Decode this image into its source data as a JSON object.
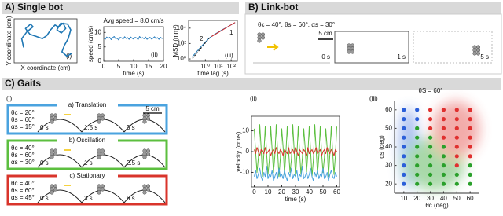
{
  "panels": {
    "A": "A) Single bot",
    "B": "B) Link-bot",
    "C": "C) Gaits"
  },
  "link_bot": {
    "params": "θc = 40°, θs = 60°, αs = 30°",
    "scale": "5 cm",
    "times": [
      "0 s",
      "1 s",
      "5 s"
    ]
  },
  "gaits": {
    "label": "(i)",
    "scale": "5 cm",
    "rows": [
      {
        "title": "a) Translation",
        "color": "#4aa3df",
        "params": [
          "θc = 20°",
          "θs = 60°",
          "αs = 15°"
        ],
        "times": [
          "0 s",
          "1.5 s",
          "3 s"
        ]
      },
      {
        "title": "b) Oscillation",
        "color": "#5cbf3f",
        "params": [
          "θc = 40°",
          "θs = 60°",
          "αs = 30°"
        ],
        "times": [
          "0 s",
          "1 s",
          "2.5 s"
        ]
      },
      {
        "title": "c) Stationary",
        "color": "#d9342b",
        "params": [
          "θc = 40°",
          "θs = 60°",
          "αs = 45°"
        ],
        "times": [
          "0 s",
          "3 s",
          "6 s"
        ]
      }
    ]
  },
  "chart_data": [
    {
      "type": "line",
      "panel_label": "(i)",
      "xlabel": "X coordinate (cm)",
      "ylabel": "Y coordinate (cm)",
      "xlim": [
        0,
        10
      ],
      "ylim": [
        0,
        10
      ],
      "x": [
        1.5,
        1.2,
        2,
        3,
        2.6,
        1.8,
        2.5,
        3.5,
        4.5,
        5.2,
        5.8,
        6.5,
        7,
        7.8,
        8.2,
        7.5,
        6.8,
        7.4,
        8.5,
        9,
        8.6,
        8,
        7.6,
        8.4,
        9.2
      ],
      "series": [
        {
          "color": "#1f77b4",
          "values": [
            3.5,
            5.5,
            7,
            8.2,
            8.8,
            7.8,
            6.5,
            6,
            5.5,
            6.2,
            7.5,
            8.6,
            8.2,
            9,
            7.8,
            6.8,
            7.5,
            9,
            8.8,
            7.5,
            5.5,
            4,
            2.5,
            1.5,
            2.2
          ]
        }
      ]
    },
    {
      "type": "line",
      "title": "Avg speed = 8.0 cm/s",
      "panel_label": "(ii)",
      "xlabel": "time (s)",
      "ylabel": "speed (cm/s)",
      "xlim": [
        0,
        20
      ],
      "ylim": [
        0,
        12
      ],
      "xticks": [
        0,
        5,
        10,
        15,
        20
      ],
      "yticks": [
        0,
        5,
        10
      ],
      "x": [
        0,
        0.5,
        1,
        1.5,
        2,
        2.5,
        3,
        3.5,
        4,
        4.5,
        5,
        5.5,
        6,
        6.5,
        7,
        7.5,
        8,
        8.5,
        9,
        9.5,
        10,
        10.5,
        11,
        11.5,
        12,
        12.5,
        13,
        13.5,
        14,
        14.5,
        15,
        15.5,
        16,
        16.5,
        17,
        17.5,
        18,
        18.5,
        19,
        19.5,
        20
      ],
      "series": [
        {
          "color": "#2a7fc0",
          "values": [
            8.1,
            7.6,
            8.4,
            7.9,
            8.3,
            7.5,
            8.2,
            8.6,
            7.8,
            8.0,
            7.4,
            8.3,
            8.1,
            7.7,
            8.5,
            7.9,
            8.2,
            7.6,
            8.4,
            8.0,
            7.7,
            8.3,
            8.1,
            7.5,
            8.6,
            7.9,
            8.2,
            7.8,
            8.4,
            7.6,
            8.1,
            8.3,
            7.7,
            8.0,
            8.5,
            7.8,
            8.2,
            7.6,
            8.3,
            7.9,
            8.1
          ]
        }
      ]
    },
    {
      "type": "line",
      "panel_label": "(iii)",
      "xlabel": "time lag (s)",
      "ylabel": "MSD (mm²)",
      "xscale": "log",
      "yscale": "log",
      "xlim": [
        0.05,
        300
      ],
      "ylim": [
        0.5,
        100000
      ],
      "xticks": [
        {
          "value": 1,
          "label": "10⁰"
        },
        {
          "value": 10,
          "label": "10¹"
        },
        {
          "value": 100,
          "label": "10²"
        }
      ],
      "yticks": [
        {
          "value": 1,
          "label": "10⁰"
        },
        {
          "value": 100,
          "label": "10²"
        },
        {
          "value": 10000,
          "label": "10⁴"
        }
      ],
      "annotations": [
        "2",
        "1"
      ],
      "series": [
        {
          "color": "#1f77b4",
          "x": [
            0.1,
            0.2,
            0.5,
            1,
            2,
            5,
            10,
            20,
            50,
            100,
            200
          ],
          "values": [
            2,
            8,
            45,
            160,
            500,
            1500,
            3000,
            6000,
            14000,
            27000,
            52000
          ]
        },
        {
          "color": "#d62728",
          "x": [
            3,
            200
          ],
          "values": [
            800,
            54000
          ]
        },
        {
          "color": "#000000",
          "dash": true,
          "x": [
            0.1,
            2
          ],
          "values": [
            1.2,
            480
          ]
        }
      ]
    },
    {
      "type": "line",
      "panel_label": "(ii)",
      "xlabel": "time (s)",
      "ylabel": "velocity (cm/s)",
      "xlim": [
        -2,
        62
      ],
      "ylim": [
        -17,
        17
      ],
      "xticks": [
        0,
        10,
        20,
        30,
        40,
        50,
        60
      ],
      "yticks": [
        -10,
        0,
        10
      ],
      "x": [
        0,
        1,
        2,
        3,
        4,
        5,
        6,
        7,
        8,
        9,
        10,
        11,
        12,
        13,
        14,
        15,
        16,
        17,
        18,
        19,
        20,
        21,
        22,
        23,
        24,
        25,
        26,
        27,
        28,
        29,
        30,
        31,
        32,
        33,
        34,
        35,
        36,
        37,
        38,
        39,
        40,
        41,
        42,
        43,
        44,
        45,
        46,
        47,
        48,
        49,
        50,
        51,
        52,
        53,
        54,
        55,
        56,
        57,
        58,
        59,
        60
      ],
      "series": [
        {
          "color": "#5cbf3f",
          "values": [
            11,
            0,
            -10,
            -3,
            13,
            2,
            -12,
            -1,
            12,
            -1,
            -11,
            -4,
            12,
            1,
            -10,
            -2,
            13,
            0,
            -12,
            -3,
            11,
            2,
            -11,
            -1,
            12,
            0,
            -10,
            -4,
            13,
            1,
            -12,
            -2,
            12,
            -1,
            -11,
            -3,
            11,
            2,
            -10,
            -1,
            12,
            0,
            -12,
            -4,
            13,
            1,
            -11,
            -2,
            12,
            -1,
            -10,
            -3,
            11,
            2,
            -12,
            -1,
            12,
            0,
            -11,
            -2,
            12
          ]
        },
        {
          "color": "#4aa3df",
          "values": [
            -12,
            -9,
            -13,
            -11,
            -8,
            -12,
            -14,
            -10,
            -12,
            -7,
            -13,
            -11,
            -12,
            -9,
            -14,
            -12,
            -10,
            -13,
            -8,
            -12,
            -11,
            -13,
            -9,
            -12,
            -14,
            -10,
            -12,
            -8,
            -13,
            -11,
            -12,
            -9,
            -14,
            -11,
            -12,
            -7,
            -13,
            -12,
            -10,
            -13,
            -11,
            -8,
            -12,
            -14,
            -10,
            -12,
            -9,
            -13,
            -11,
            -12,
            -8,
            -13,
            -12,
            -10,
            -14,
            -11,
            -9,
            -12,
            -13,
            -10,
            -12
          ]
        },
        {
          "color": "#d9342b",
          "values": [
            1,
            -1,
            2,
            0,
            -2,
            1,
            0,
            -1,
            2,
            -1,
            0,
            1,
            -2,
            0,
            1,
            -1,
            2,
            0,
            -1,
            1,
            0,
            -2,
            1,
            0,
            -1,
            2,
            -1,
            0,
            1,
            -1,
            2,
            0,
            -2,
            1,
            0,
            -1,
            1,
            0,
            -2,
            2,
            -1,
            0,
            1,
            -1,
            0,
            2,
            -1,
            0,
            1,
            -2,
            0,
            1,
            -1,
            2,
            0,
            -1,
            1,
            0,
            -2,
            1,
            0
          ]
        }
      ]
    },
    {
      "type": "scatter",
      "title": "θS = 60°",
      "panel_label": "(iii)",
      "xlabel": "θc (deg)",
      "ylabel": "αs (deg)",
      "xlim": [
        3,
        67
      ],
      "ylim": [
        15,
        65
      ],
      "xticks": [
        10,
        20,
        30,
        40,
        50,
        60
      ],
      "yticks": [
        20,
        30,
        40,
        50,
        60
      ],
      "series": [
        {
          "color": "#2b5fd9",
          "x": [
            10,
            10,
            10,
            10,
            10,
            10,
            10,
            10,
            10,
            20,
            20
          ],
          "values": [
            20,
            25,
            30,
            35,
            40,
            45,
            50,
            55,
            60,
            55,
            60
          ]
        },
        {
          "color": "#2aa02b",
          "x": [
            20,
            20,
            20,
            20,
            20,
            20,
            20,
            30,
            30,
            30,
            30,
            30,
            30,
            40,
            40,
            40,
            40,
            40,
            50,
            50,
            60,
            60,
            60
          ],
          "values": [
            20,
            25,
            30,
            35,
            40,
            45,
            50,
            20,
            25,
            30,
            35,
            40,
            45,
            20,
            25,
            30,
            35,
            40,
            20,
            25,
            20,
            25,
            30
          ]
        },
        {
          "color": "#e0302f",
          "x": [
            30,
            30,
            30,
            40,
            40,
            40,
            40,
            50,
            50,
            50,
            50,
            50,
            50,
            50,
            60,
            60,
            60,
            60,
            60,
            60
          ],
          "values": [
            50,
            55,
            60,
            45,
            50,
            55,
            60,
            30,
            35,
            40,
            45,
            50,
            55,
            60,
            35,
            40,
            45,
            50,
            55,
            60
          ]
        }
      ]
    }
  ]
}
